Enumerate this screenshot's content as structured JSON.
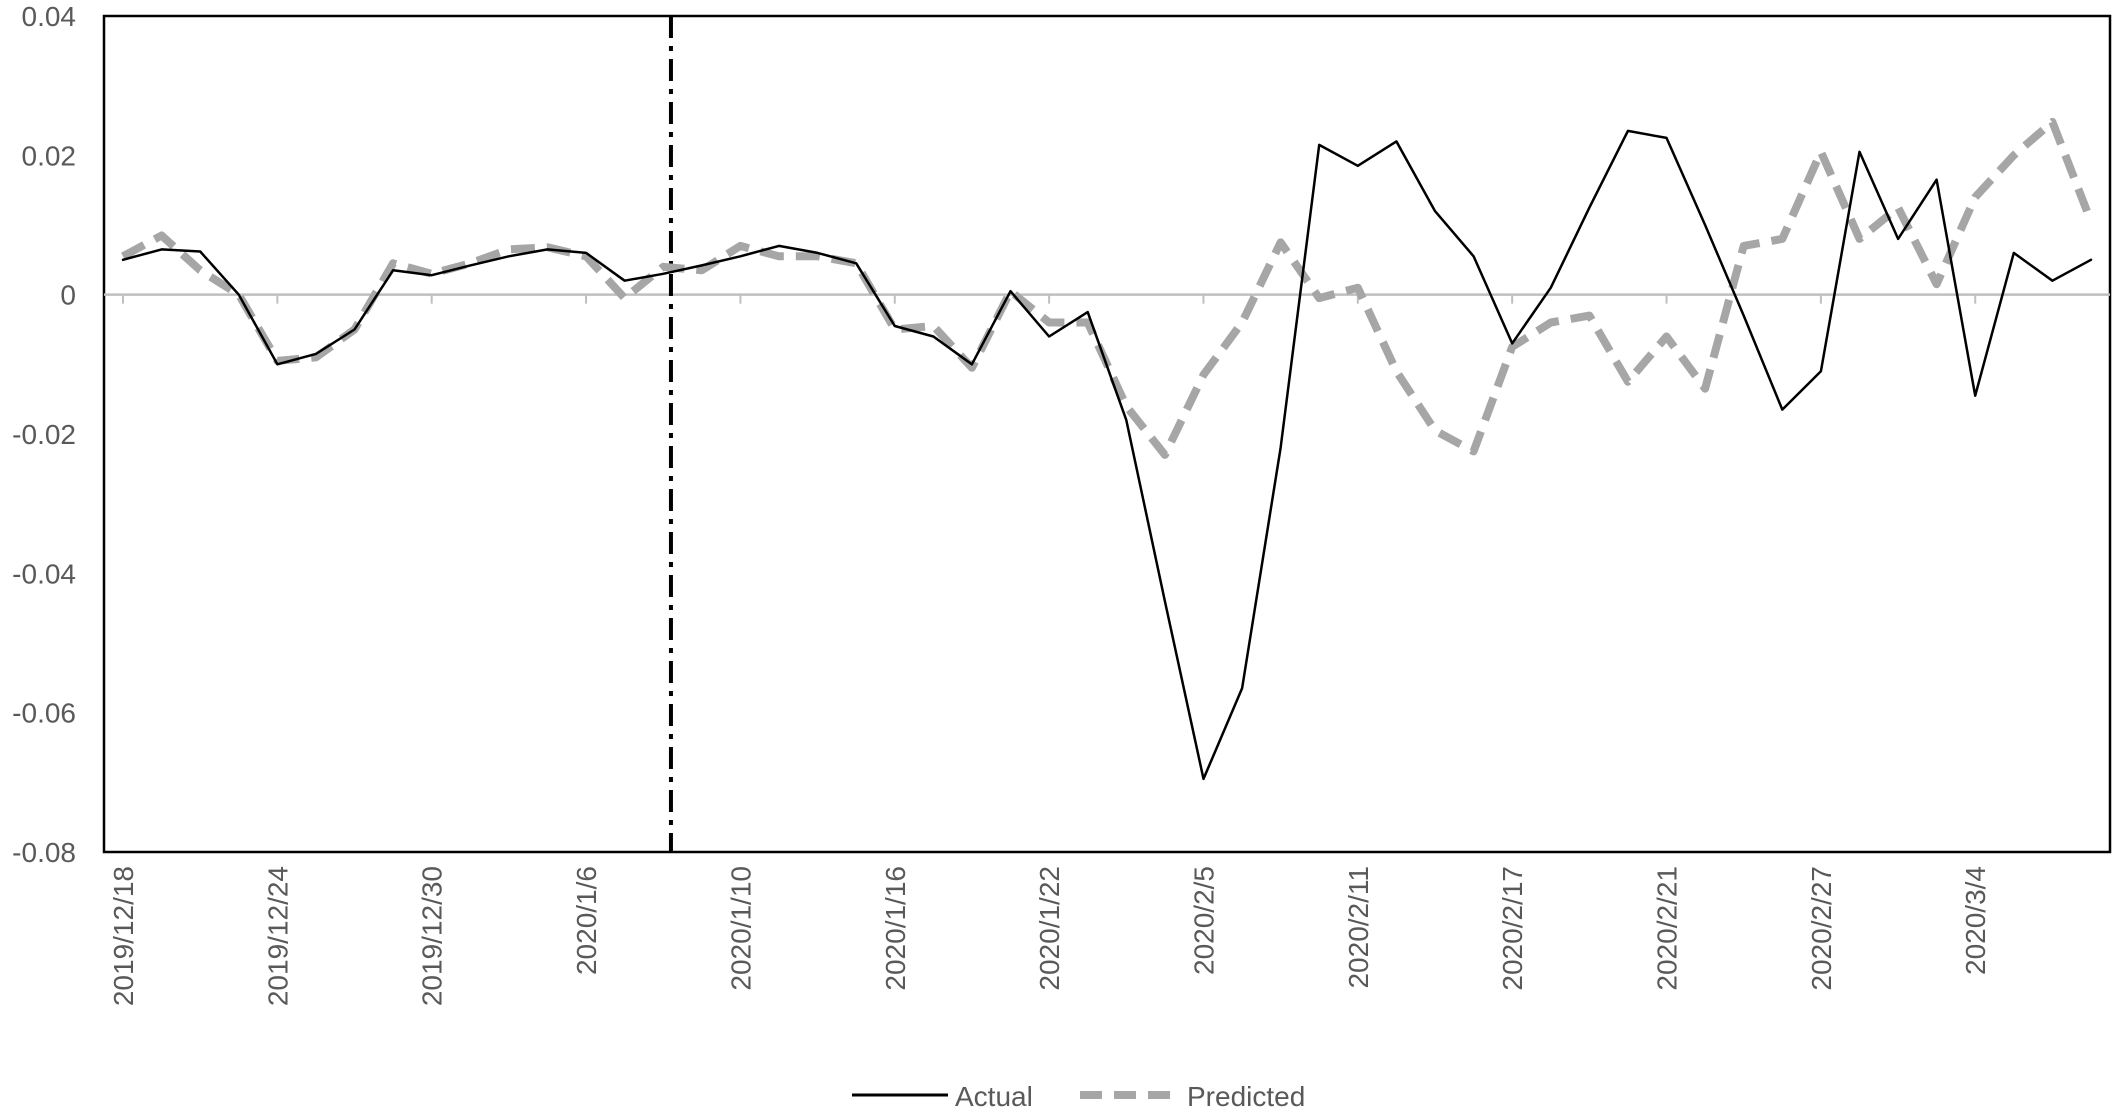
{
  "chart_data": {
    "type": "line",
    "title": "",
    "xlabel": "",
    "ylabel": "",
    "ylim": [
      -0.08,
      0.04
    ],
    "y_ticks": [
      0.04,
      0.02,
      0,
      -0.02,
      -0.04,
      -0.06,
      -0.08
    ],
    "y_tick_labels": [
      "0.04",
      "0.02",
      "0",
      "-0.02",
      "-0.04",
      "-0.06",
      "-0.08"
    ],
    "x_tick_labels": [
      {
        "label": "2019/12/18",
        "index": 0
      },
      {
        "label": "2019/12/24",
        "index": 4
      },
      {
        "label": "2019/12/30",
        "index": 8
      },
      {
        "label": "2020/1/6",
        "index": 12
      },
      {
        "label": "2020/1/10",
        "index": 16
      },
      {
        "label": "2020/1/16",
        "index": 20
      },
      {
        "label": "2020/1/22",
        "index": 24
      },
      {
        "label": "2020/2/5",
        "index": 28
      },
      {
        "label": "2020/2/11",
        "index": 32
      },
      {
        "label": "2020/2/17",
        "index": 36
      },
      {
        "label": "2020/2/21",
        "index": 40
      },
      {
        "label": "2020/2/27",
        "index": 44
      },
      {
        "label": "2020/3/4",
        "index": 48
      }
    ],
    "divider_after_index": 14.2,
    "grid": false,
    "legend_position": "bottom",
    "colors": {
      "actual": "#000000",
      "predicted": "#a6a6a6",
      "zero_line": "#bfbfbf",
      "divider": "#000000"
    },
    "series": [
      {
        "name": "Actual",
        "style": "solid",
        "values": [
          0.005,
          0.0065,
          0.0062,
          0.0,
          -0.01,
          -0.0085,
          -0.005,
          0.0035,
          0.0028,
          0.0042,
          0.0055,
          0.0065,
          0.006,
          0.002,
          0.003,
          0.0042,
          0.0055,
          0.007,
          0.006,
          0.0045,
          -0.0045,
          -0.006,
          -0.01,
          0.0005,
          -0.006,
          -0.0025,
          -0.018,
          -0.044,
          -0.0695,
          -0.0565,
          -0.022,
          0.0215,
          0.0185,
          0.022,
          0.012,
          0.0055,
          -0.007,
          0.001,
          0.0125,
          0.0235,
          0.0225,
          0.01,
          -0.003,
          -0.0165,
          -0.011,
          0.0205,
          0.008,
          0.0165,
          -0.0145,
          0.006,
          0.002,
          0.005
        ]
      },
      {
        "name": "Predicted",
        "style": "dashed",
        "values": [
          0.0055,
          0.0085,
          0.0035,
          0.0,
          -0.0095,
          -0.009,
          -0.005,
          0.0045,
          0.003,
          0.0045,
          0.0065,
          0.0068,
          0.0055,
          -0.0005,
          0.004,
          0.0035,
          0.007,
          0.0055,
          0.0055,
          0.0045,
          -0.005,
          -0.0045,
          -0.0105,
          0.0005,
          -0.004,
          -0.004,
          -0.016,
          -0.023,
          -0.0115,
          -0.004,
          0.0075,
          -0.0005,
          0.001,
          -0.011,
          -0.0195,
          -0.0225,
          -0.0075,
          -0.004,
          -0.003,
          -0.0125,
          -0.006,
          -0.0135,
          0.007,
          0.008,
          0.0205,
          0.008,
          0.0125,
          0.0015,
          0.014,
          0.02,
          0.0248,
          0.0105
        ]
      }
    ]
  }
}
